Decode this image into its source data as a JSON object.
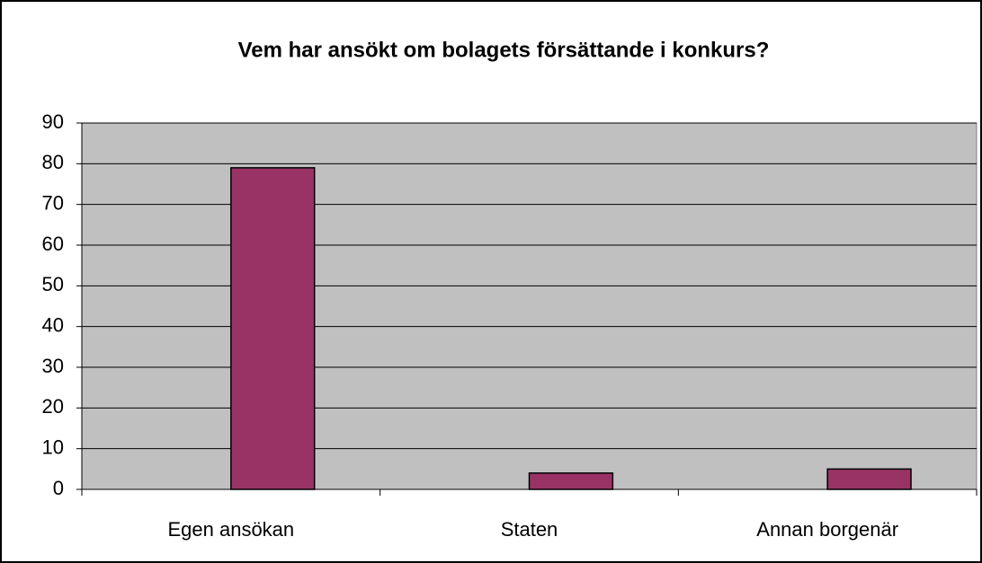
{
  "chart_data": {
    "type": "bar",
    "title": "Vem har ansökt om bolagets försättande i konkurs?",
    "categories": [
      "Egen ansökan",
      "Staten",
      "Annan borgenär"
    ],
    "values": [
      79,
      4,
      5
    ],
    "color": "#993366",
    "ylim": [
      0,
      90
    ],
    "yticks": [
      0,
      10,
      20,
      30,
      40,
      50,
      60,
      70,
      80,
      90
    ],
    "grid": true
  }
}
